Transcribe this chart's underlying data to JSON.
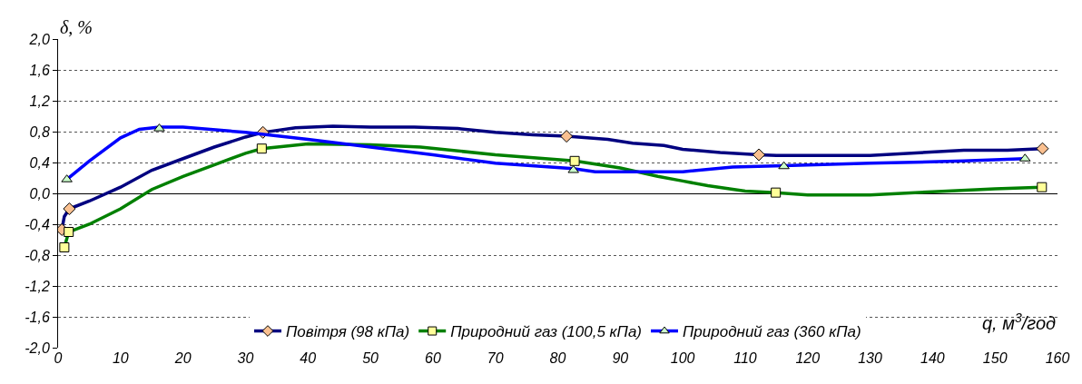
{
  "chart_data": {
    "type": "line",
    "xlabel": "q, м$^{3}$/год",
    "ylabel": "δ, %",
    "xlim": [
      0,
      160
    ],
    "xticks": [
      0,
      10,
      20,
      30,
      40,
      50,
      60,
      70,
      80,
      90,
      100,
      110,
      120,
      130,
      140,
      150,
      160
    ],
    "ylim": [
      -2,
      2
    ],
    "yticks": [
      {
        "value": -2,
        "label": "-2,0"
      },
      {
        "value": -1.6,
        "label": "-1,6"
      },
      {
        "value": -1.2,
        "label": "-1,2"
      },
      {
        "value": -0.8,
        "label": "-0,8"
      },
      {
        "value": -0.4,
        "label": "-0,4"
      },
      {
        "value": 0,
        "label": "0,0"
      },
      {
        "value": 0.4,
        "label": "0,4"
      },
      {
        "value": 0.8,
        "label": "0,8"
      },
      {
        "value": 1.2,
        "label": "1,2"
      },
      {
        "value": 1.6,
        "label": "1,6"
      },
      {
        "value": 2,
        "label": "2,0"
      }
    ],
    "grid": "y",
    "legend": "bottom",
    "line_style": "solid",
    "series": [
      {
        "name": "Повітря (98 кПа)",
        "color": "#000080",
        "marker": "none",
        "x": [
          0.6,
          1,
          1.8,
          5,
          10,
          15,
          20,
          25,
          30,
          32.8,
          38,
          44,
          50,
          57,
          64,
          70,
          76,
          81.4,
          88,
          92,
          97,
          100,
          106,
          112.2,
          115,
          130,
          145,
          152,
          157.6
        ],
        "values": [
          -0.47,
          -0.3,
          -0.2,
          -0.1,
          0.08,
          0.3,
          0.45,
          0.6,
          0.73,
          0.79,
          0.85,
          0.87,
          0.86,
          0.86,
          0.84,
          0.79,
          0.76,
          0.74,
          0.7,
          0.65,
          0.62,
          0.57,
          0.53,
          0.5,
          0.49,
          0.49,
          0.56,
          0.56,
          0.58
        ]
      },
      {
        "type": "scatter",
        "color": "#fac090",
        "marker": "diamond",
        "x": [
          0.6,
          1.8,
          32.8,
          81.4,
          112.2,
          157.6
        ],
        "values": [
          -0.47,
          -0.2,
          0.79,
          0.74,
          0.5,
          0.58
        ]
      },
      {
        "name": "Природний газ (100,5 кПа)",
        "color": "#008000",
        "marker": "none",
        "x": [
          1,
          1.7,
          5,
          10,
          15,
          20,
          25,
          30,
          32.6,
          40,
          50,
          58,
          70,
          82.7,
          90,
          96,
          100,
          104,
          110,
          114.9,
          120,
          130,
          140,
          150,
          157.5
        ],
        "values": [
          -0.7,
          -0.5,
          -0.4,
          -0.2,
          0.05,
          0.22,
          0.37,
          0.52,
          0.58,
          0.64,
          0.63,
          0.6,
          0.5,
          0.42,
          0.33,
          0.22,
          0.16,
          0.1,
          0.03,
          0.01,
          -0.02,
          -0.02,
          0.02,
          0.06,
          0.08
        ]
      },
      {
        "type": "scatter",
        "color": "#ffff99",
        "marker": "square",
        "x": [
          1,
          1.7,
          32.6,
          82.7,
          114.9,
          157.5
        ],
        "values": [
          -0.7,
          -0.5,
          0.58,
          0.42,
          0.01,
          0.08
        ]
      },
      {
        "name": "Природний газ (360 кПа)",
        "color": "#0000ff",
        "marker": "none",
        "x": [
          1.4,
          5,
          10,
          13,
          16.2,
          20,
          30,
          40,
          50,
          60,
          70,
          82.5,
          86,
          100,
          108,
          116.2,
          130,
          145,
          154.8
        ],
        "values": [
          0.18,
          0.42,
          0.72,
          0.83,
          0.86,
          0.86,
          0.79,
          0.7,
          0.6,
          0.5,
          0.39,
          0.32,
          0.28,
          0.28,
          0.34,
          0.36,
          0.39,
          0.42,
          0.45
        ]
      },
      {
        "type": "scatter",
        "color": "#ccffcc",
        "marker": "triangle",
        "x": [
          1.4,
          16.2,
          82.5,
          116.2,
          154.8
        ],
        "values": [
          0.18,
          0.84,
          0.3,
          0.35,
          0.45
        ]
      }
    ]
  }
}
